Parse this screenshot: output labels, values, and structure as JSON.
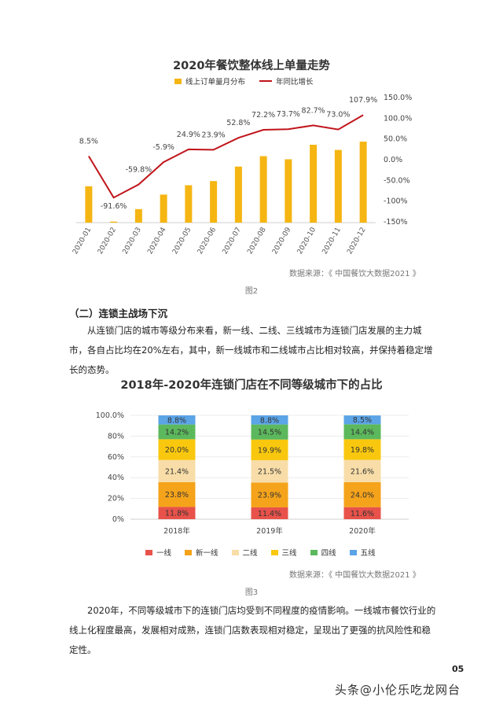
{
  "figure2": {
    "caption": "图2",
    "source": "数据来源：《 中国餐饮大数据2021 》",
    "legend": [
      {
        "label": "线上订单量月分布",
        "color": "#F5B512",
        "kind": "bar"
      },
      {
        "label": "年同比增长",
        "color": "#C0151B",
        "kind": "line"
      }
    ]
  },
  "section": {
    "heading": "（二）连锁主战场下沉",
    "paragraph1": "从连锁门店的城市等级分布来看，新一线、二线、三线城市为连锁门店发展的主力城市，各自占比均在20%左右，其中，新一线城市和二线城市占比相对较高，并保持着稳定增长的态势。",
    "paragraph2": "2020年，不同等级城市下的连锁门店均受到不同程度的疫情影响。一线城市餐饮行业的线上化程度最高，发展相对成熟，连锁门店数表现相对稳定，呈现出了更强的抗风险性和稳定性。"
  },
  "figure3": {
    "caption": "图3",
    "source": "数据来源：《 中国餐饮大数据2021 》"
  },
  "chart_data": [
    {
      "type": "bar",
      "title": "2020年餐饮整体线上单量走势",
      "categories": [
        "2020-01",
        "2020-02",
        "2020-03",
        "2020-04",
        "2020-05",
        "2020-06",
        "2020-07",
        "2020-08",
        "2020-09",
        "2020-10",
        "2020-11",
        "2020-12"
      ],
      "series": [
        {
          "name": "线上订单量月分布",
          "kind": "bar",
          "color": "#F5B512",
          "values": [
            0.35,
            0.01,
            0.13,
            0.27,
            0.36,
            0.4,
            0.54,
            0.64,
            0.61,
            0.75,
            0.7,
            0.78
          ]
        },
        {
          "name": "年同比增长",
          "kind": "line",
          "color": "#C0151B",
          "axis": "right",
          "unit": "%",
          "values": [
            8.5,
            -91.6,
            -59.8,
            -5.9,
            24.9,
            23.9,
            52.8,
            72.2,
            73.7,
            82.7,
            73.0,
            107.9
          ],
          "labels": [
            "8.5%",
            "-91.6%",
            "-59.8%",
            "-5.9%",
            "24.9%",
            "23.9%",
            "52.8%",
            "72.2%",
            "73.7%",
            "82.7%",
            "73.0%",
            "107.9%"
          ]
        }
      ],
      "y2_ticks": [
        "150.0%",
        "100.0%",
        "50.0%",
        "0.0%",
        "-50.0%",
        "-100%",
        "-150%"
      ],
      "y2_tick_values": [
        150,
        100,
        50,
        0,
        -50,
        -100,
        -150
      ],
      "y2lim": [
        -150,
        150
      ],
      "legend_position": "top"
    },
    {
      "type": "bar",
      "stacked": true,
      "title": "2018年-2020年连锁门店在不同等级城市下的占比",
      "categories": [
        "2018年",
        "2019年",
        "2020年"
      ],
      "y_ticks": [
        "100.0%",
        "80%",
        "60%",
        "40%",
        "20%",
        "0%"
      ],
      "y_tick_values": [
        100,
        80,
        60,
        40,
        20,
        0
      ],
      "ylim": [
        0,
        100
      ],
      "legend_position": "bottom",
      "series": [
        {
          "name": "一线",
          "color": "#E8524A",
          "values": [
            11.8,
            11.4,
            11.6
          ],
          "labels": [
            "11.8%",
            "11.4%",
            "11.6%"
          ]
        },
        {
          "name": "新一线",
          "color": "#F5A31A",
          "values": [
            23.8,
            23.9,
            24.0
          ],
          "labels": [
            "23.8%",
            "23.9%",
            "24.0%"
          ]
        },
        {
          "name": "二线",
          "color": "#F8DDA8",
          "values": [
            21.4,
            21.5,
            21.6
          ],
          "labels": [
            "21.4%",
            "21.5%",
            "21.6%"
          ]
        },
        {
          "name": "三线",
          "color": "#F9C80E",
          "values": [
            20.0,
            19.9,
            19.8
          ],
          "labels": [
            "20.0%",
            "19.9%",
            "19.8%"
          ]
        },
        {
          "name": "四线",
          "color": "#5CB85C",
          "values": [
            14.2,
            14.5,
            14.4
          ],
          "labels": [
            "14.2%",
            "14.5%",
            "14.4%"
          ]
        },
        {
          "name": "五线",
          "color": "#5BA4E6",
          "values": [
            8.8,
            8.8,
            8.5
          ],
          "labels": [
            "8.8%",
            "8.8%",
            "8.5%"
          ]
        }
      ]
    }
  ],
  "footer": {
    "page_number": "05",
    "watermark": "头条@小伦乐吃龙网台"
  }
}
